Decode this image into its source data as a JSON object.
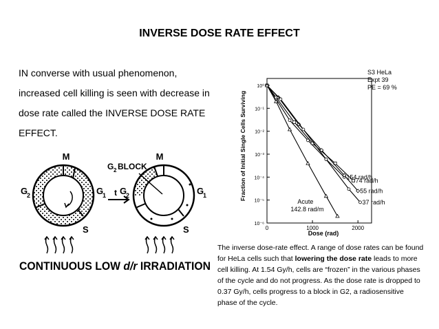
{
  "slide": {
    "title": "INVERSE DOSE RATE EFFECT",
    "body_lines": [
      "IN converse with usual phenomenon,",
      "increased cell killing is seen with decrease in",
      "dose rate called the INVERSE DOSE RATE",
      "EFFECT."
    ]
  },
  "cycle_figure": {
    "left_phases": {
      "m": "M",
      "g2": "G",
      "g2_sub": "2",
      "g1": "G",
      "g1_sub": "1",
      "s": "S"
    },
    "right_phases": {
      "m": "M",
      "g2": "G",
      "g2_sub": "2",
      "g1": "G",
      "g1_sub": "1",
      "s": "S"
    },
    "block_label": "G",
    "block_sub": "2",
    "block_word": "BLOCK",
    "time_label": "t",
    "banner_part1": "CONTINUOUS LOW ",
    "banner_part2": "d/r",
    "banner_part3": " IRRADIATION"
  },
  "chart_data": {
    "type": "line",
    "legend": [
      "S3 HeLa",
      "Expt 39",
      "PE = 69 %"
    ],
    "xlabel": "Dose (rad)",
    "ylabel": "Fraction of Initial Single Cells Surviving",
    "xlim": [
      0,
      2300
    ],
    "ylim_log10": [
      -6,
      0.3
    ],
    "x_ticks": [
      {
        "value": 0,
        "label": "0"
      },
      {
        "value": 1000,
        "label": "1000"
      },
      {
        "value": 2000,
        "label": "2000"
      }
    ],
    "y_ticks": [
      {
        "exp": 0,
        "label": "10⁰"
      },
      {
        "exp": -1,
        "label": "10⁻¹"
      },
      {
        "exp": -2,
        "label": "10⁻²"
      },
      {
        "exp": -3,
        "label": "10⁻³"
      },
      {
        "exp": -4,
        "label": "10⁻⁴"
      },
      {
        "exp": -5,
        "label": "10⁻⁵"
      },
      {
        "exp": -6,
        "label": "10⁻⁶"
      }
    ],
    "series": [
      {
        "name": "154 rad/h",
        "points": [
          [
            0,
            1
          ],
          [
            200,
            0.25
          ],
          [
            500,
            0.03
          ],
          [
            900,
            0.004
          ],
          [
            1300,
            0.0006
          ],
          [
            1700,
            0.0001
          ]
        ]
      },
      {
        "name": "74 rad/h",
        "points": [
          [
            0,
            1
          ],
          [
            200,
            0.3
          ],
          [
            600,
            0.025
          ],
          [
            1000,
            0.003
          ],
          [
            1500,
            0.0004
          ],
          [
            1900,
            7e-05
          ]
        ]
      },
      {
        "name": "55 rad/h",
        "points": [
          [
            0,
            1
          ],
          [
            250,
            0.3
          ],
          [
            700,
            0.02
          ],
          [
            1200,
            0.0015
          ],
          [
            1700,
            0.00012
          ],
          [
            2000,
            2.5e-05
          ]
        ]
      },
      {
        "name": "37 rad/h",
        "points": [
          [
            0,
            1
          ],
          [
            300,
            0.25
          ],
          [
            800,
            0.012
          ],
          [
            1300,
            0.0006
          ],
          [
            1800,
            3e-05
          ],
          [
            2050,
            8e-06
          ]
        ]
      },
      {
        "name": "Acute 142.8 rad/m",
        "label_lines": [
          "Acute",
          "142.8 rad/m"
        ],
        "points": [
          [
            0,
            1
          ],
          [
            200,
            0.2
          ],
          [
            500,
            0.012
          ],
          [
            900,
            0.0004
          ],
          [
            1300,
            1.5e-05
          ],
          [
            1550,
            2e-06
          ]
        ]
      }
    ]
  },
  "caption": {
    "part1": "The inverse dose-rate effect. A range of dose rates can be found for HeLa cells such that ",
    "bold": "lowering the dose rate",
    "part2": " leads to more cell killing. At 1.54 Gy/h, cells are “frozen” in the various phases of the cycle and do not progress. As the dose rate is dropped to 0.37 Gy/h, cells progress to a block in G2, a radiosensitive phase of the cycle."
  }
}
